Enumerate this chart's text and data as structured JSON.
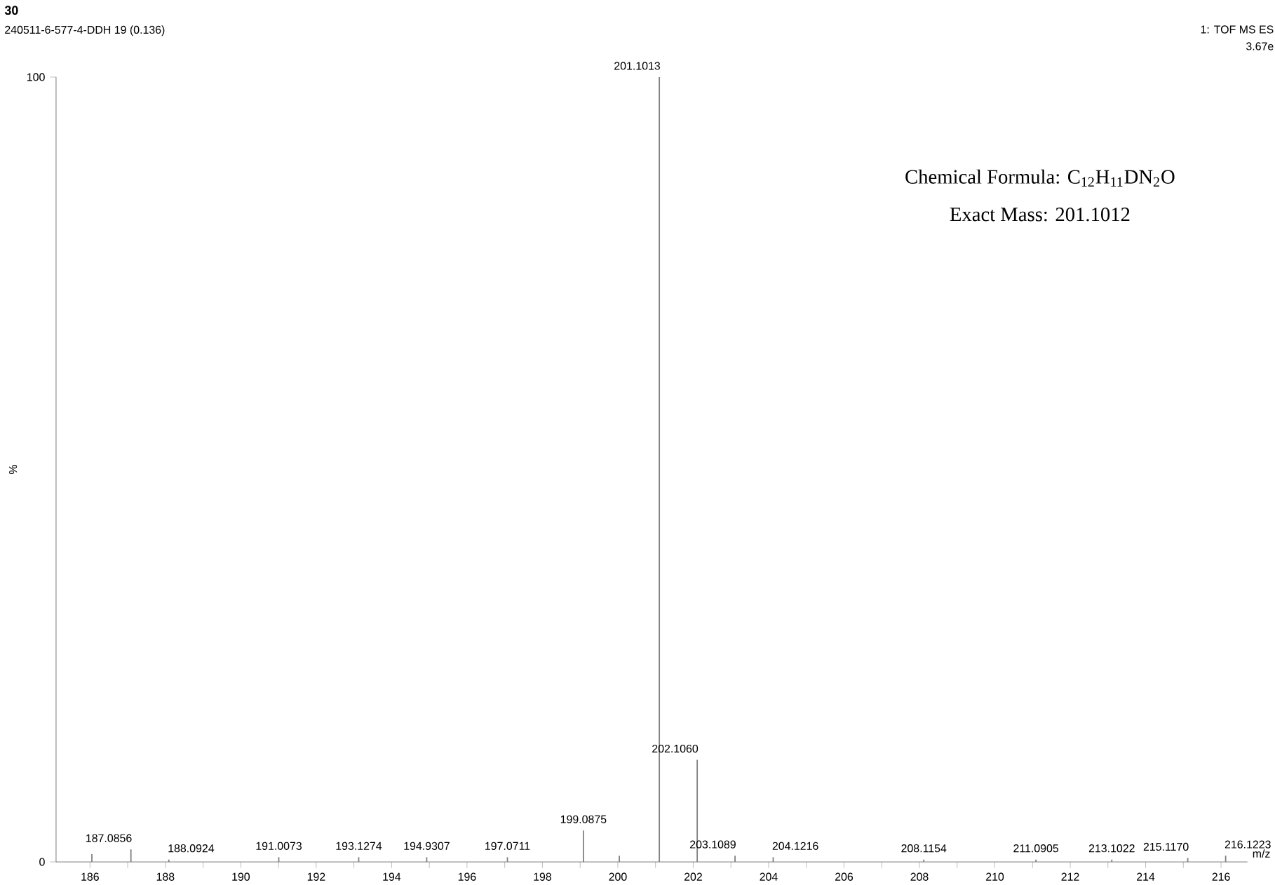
{
  "chart_data": {
    "type": "bar",
    "title": "30",
    "subtitle": "240511-6-577-4-DDH 19 (0.136)",
    "xlabel": "m/z",
    "ylabel": "%",
    "x": [
      186.05,
      187.0856,
      188.0924,
      191.0073,
      193.1274,
      194.9307,
      197.0711,
      199.0875,
      200.04,
      201.1013,
      202.106,
      203.1089,
      204.1216,
      208.1154,
      211.0905,
      213.1022,
      215.117,
      216.1223
    ],
    "series": [
      {
        "color": "#808080",
        "values": [
          1,
          1.6,
          0.3,
          0.6,
          0.6,
          0.6,
          0.6,
          4,
          0.8,
          100,
          13,
          0.8,
          0.6,
          0.3,
          0.3,
          0.3,
          0.5,
          0.8
        ]
      }
    ],
    "xlim": [
      185.1,
      216.7
    ],
    "ylim": [
      0,
      100
    ],
    "xticks": [
      186,
      {
        "value": 187,
        "label": null
      },
      188,
      {
        "value": 189,
        "label": null
      },
      190,
      {
        "value": 191,
        "label": null
      },
      192,
      {
        "value": 193,
        "label": null
      },
      194,
      {
        "value": 195,
        "label": null
      },
      196,
      {
        "value": 197,
        "label": null
      },
      198,
      {
        "value": 199,
        "label": null
      },
      200,
      {
        "value": 201,
        "label": null
      },
      202,
      {
        "value": 203,
        "label": null
      },
      204,
      {
        "value": 205,
        "label": null
      },
      206,
      {
        "value": 207,
        "label": null
      },
      208,
      {
        "value": 209,
        "label": null
      },
      210,
      {
        "value": 211,
        "label": null
      },
      212,
      {
        "value": 213,
        "label": null
      },
      214,
      {
        "value": 215,
        "label": null
      },
      216
    ],
    "yticks": [
      0,
      100
    ],
    "annotations": [
      "1: TOF MS ES",
      "3.67e",
      "Chemical Formula: C$_{12}$H$_{11}$DN$_{2}$O",
      "Exact Mass: 201.1012",
      {
        "text": "187.0856",
        "x": 187.0856,
        "y": 1.6
      },
      {
        "text": "188.0924",
        "x": 188.0924,
        "y": 0.3
      },
      {
        "text": "191.0073",
        "x": 191.0073,
        "y": 0.6
      },
      {
        "text": "193.1274",
        "x": 193.1274,
        "y": 0.6
      },
      {
        "text": "194.9307",
        "x": 194.9307,
        "y": 0.6
      },
      {
        "text": "197.0711",
        "x": 197.0711,
        "y": 0.6
      },
      {
        "text": "199.0875",
        "x": 199.0875,
        "y": 4
      },
      {
        "text": "201.1013",
        "x": 201.1013,
        "y": 100
      },
      {
        "text": "202.1060",
        "x": 202.106,
        "y": 13
      },
      {
        "text": "203.1089",
        "x": 203.1089,
        "y": 0.8
      },
      {
        "text": "204.1216",
        "x": 204.1216,
        "y": 0.6
      },
      {
        "text": "208.1154",
        "x": 208.1154,
        "y": 0.3
      },
      {
        "text": "211.0905",
        "x": 211.0905,
        "y": 0.3
      },
      {
        "text": "213.1022",
        "x": 213.1022,
        "y": 0.3
      },
      {
        "text": "215.1170",
        "x": 215.117,
        "y": 0.5
      },
      {
        "text": "216.1223",
        "x": 216.1223,
        "y": 0.8
      }
    ]
  }
}
